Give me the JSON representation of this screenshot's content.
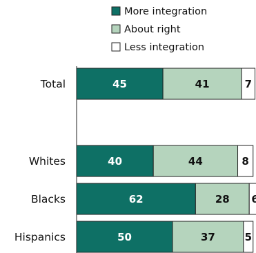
{
  "chart_data": {
    "type": "bar",
    "orientation": "horizontal",
    "stacked": true,
    "categories": [
      "Total",
      "Whites",
      "Blacks",
      "Hispanics"
    ],
    "series": [
      {
        "name": "More integration",
        "values": [
          45,
          40,
          62,
          50
        ],
        "color": "#0e7065",
        "label_color": "#ffffff"
      },
      {
        "name": "About right",
        "values": [
          41,
          44,
          28,
          37
        ],
        "color": "#b5d4bd",
        "label_color": "#111111"
      },
      {
        "name": "Less integration",
        "values": [
          7,
          8,
          6,
          5
        ],
        "color": "#ffffff",
        "label_color": "#111111"
      }
    ],
    "legend_position": "top",
    "grid": false
  }
}
